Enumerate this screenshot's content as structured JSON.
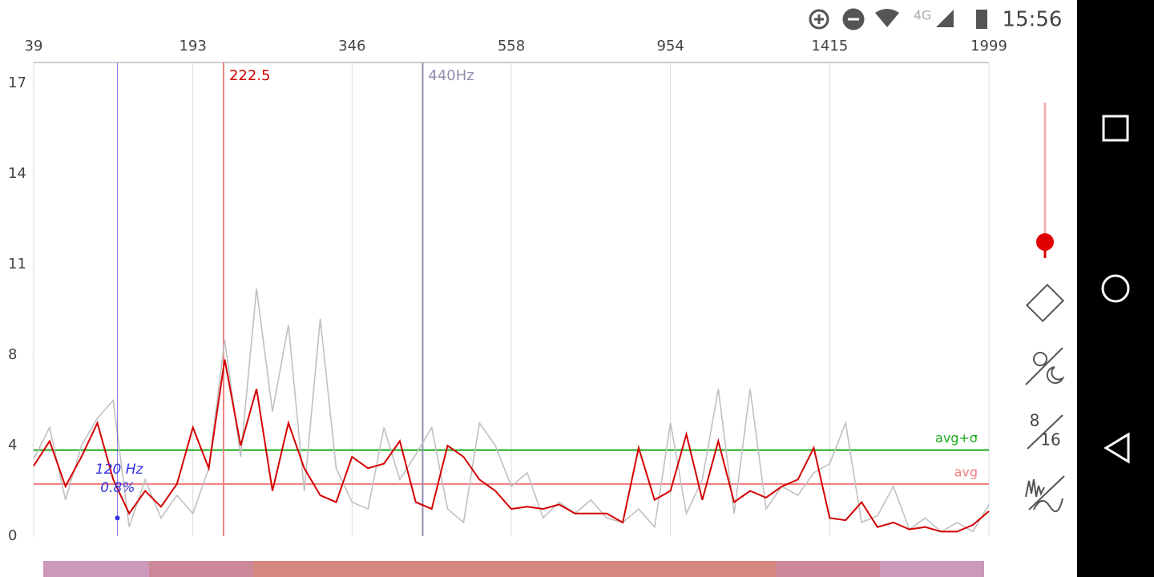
{
  "status_bar": {
    "network": "4G",
    "time": "15:56"
  },
  "chart_data": {
    "type": "line",
    "xlim": [
      39,
      1999
    ],
    "xticks": [
      39,
      193,
      346,
      558,
      954,
      1415,
      1999
    ],
    "ylim": [
      0,
      17
    ],
    "yticks": [
      0,
      4,
      8,
      11,
      14,
      17
    ],
    "series": [
      {
        "color": "#c0c0c0",
        "values": [
          3.4,
          4.8,
          1.6,
          4.0,
          5.2,
          6.0,
          0.4,
          2.5,
          0.8,
          1.8,
          1.0,
          3.0,
          8.5,
          3.5,
          10.2,
          5.5,
          9.0,
          2.0,
          9.2,
          3.0,
          1.5,
          1.2,
          4.8,
          2.5,
          3.6,
          4.8,
          1.2,
          0.6,
          5.0,
          4.0,
          2.2,
          2.8,
          0.8,
          1.5,
          1.0,
          1.6,
          0.8,
          0.6,
          1.2,
          0.4,
          5.0,
          1.0,
          2.5,
          6.5,
          1.0,
          6.5,
          1.2,
          2.2,
          1.8,
          2.8,
          3.2,
          5.0,
          0.6,
          0.9,
          2.2,
          0.3,
          0.8,
          0.2,
          0.6,
          0.2,
          1.4
        ]
      },
      {
        "color": "#d40000",
        "values": [
          3.1,
          4.2,
          2.2,
          3.5,
          5.0,
          2.5,
          1.0,
          2.0,
          1.3,
          2.3,
          4.8,
          3.0,
          7.8,
          4.0,
          6.5,
          2.0,
          5.0,
          3.0,
          1.8,
          1.5,
          3.5,
          3.0,
          3.2,
          4.2,
          1.5,
          1.2,
          4.0,
          3.5,
          2.5,
          2.0,
          1.2,
          1.3,
          1.2,
          1.4,
          1.0,
          1.0,
          1.0,
          0.6,
          3.9,
          1.6,
          2.0,
          4.5,
          1.6,
          4.2,
          1.5,
          2.0,
          1.7,
          2.2,
          2.5,
          3.9,
          0.8,
          0.7,
          1.5,
          0.4,
          0.6,
          0.3,
          0.4,
          0.2,
          0.2,
          0.5,
          1.1
        ]
      }
    ],
    "hlines": [
      {
        "value": 3.8,
        "label": "avg+σ",
        "color": "#1aaa1a"
      },
      {
        "value": 2.3,
        "label": "avg",
        "color": "#f08080"
      }
    ],
    "vlines": [
      {
        "value": 222.5,
        "color": "#f08080",
        "text_color": "#d00000"
      },
      {
        "value": 440,
        "label": "440Hz",
        "color": "#9090b0"
      }
    ],
    "cursor": {
      "color": "#3030e0",
      "x": {
        "value": 120,
        "label": "120 Hz"
      },
      "y": {
        "value": 0.8,
        "label": "0.8%"
      }
    }
  },
  "side_panel": {
    "fraction_top": 8,
    "fraction_bottom": 16
  }
}
